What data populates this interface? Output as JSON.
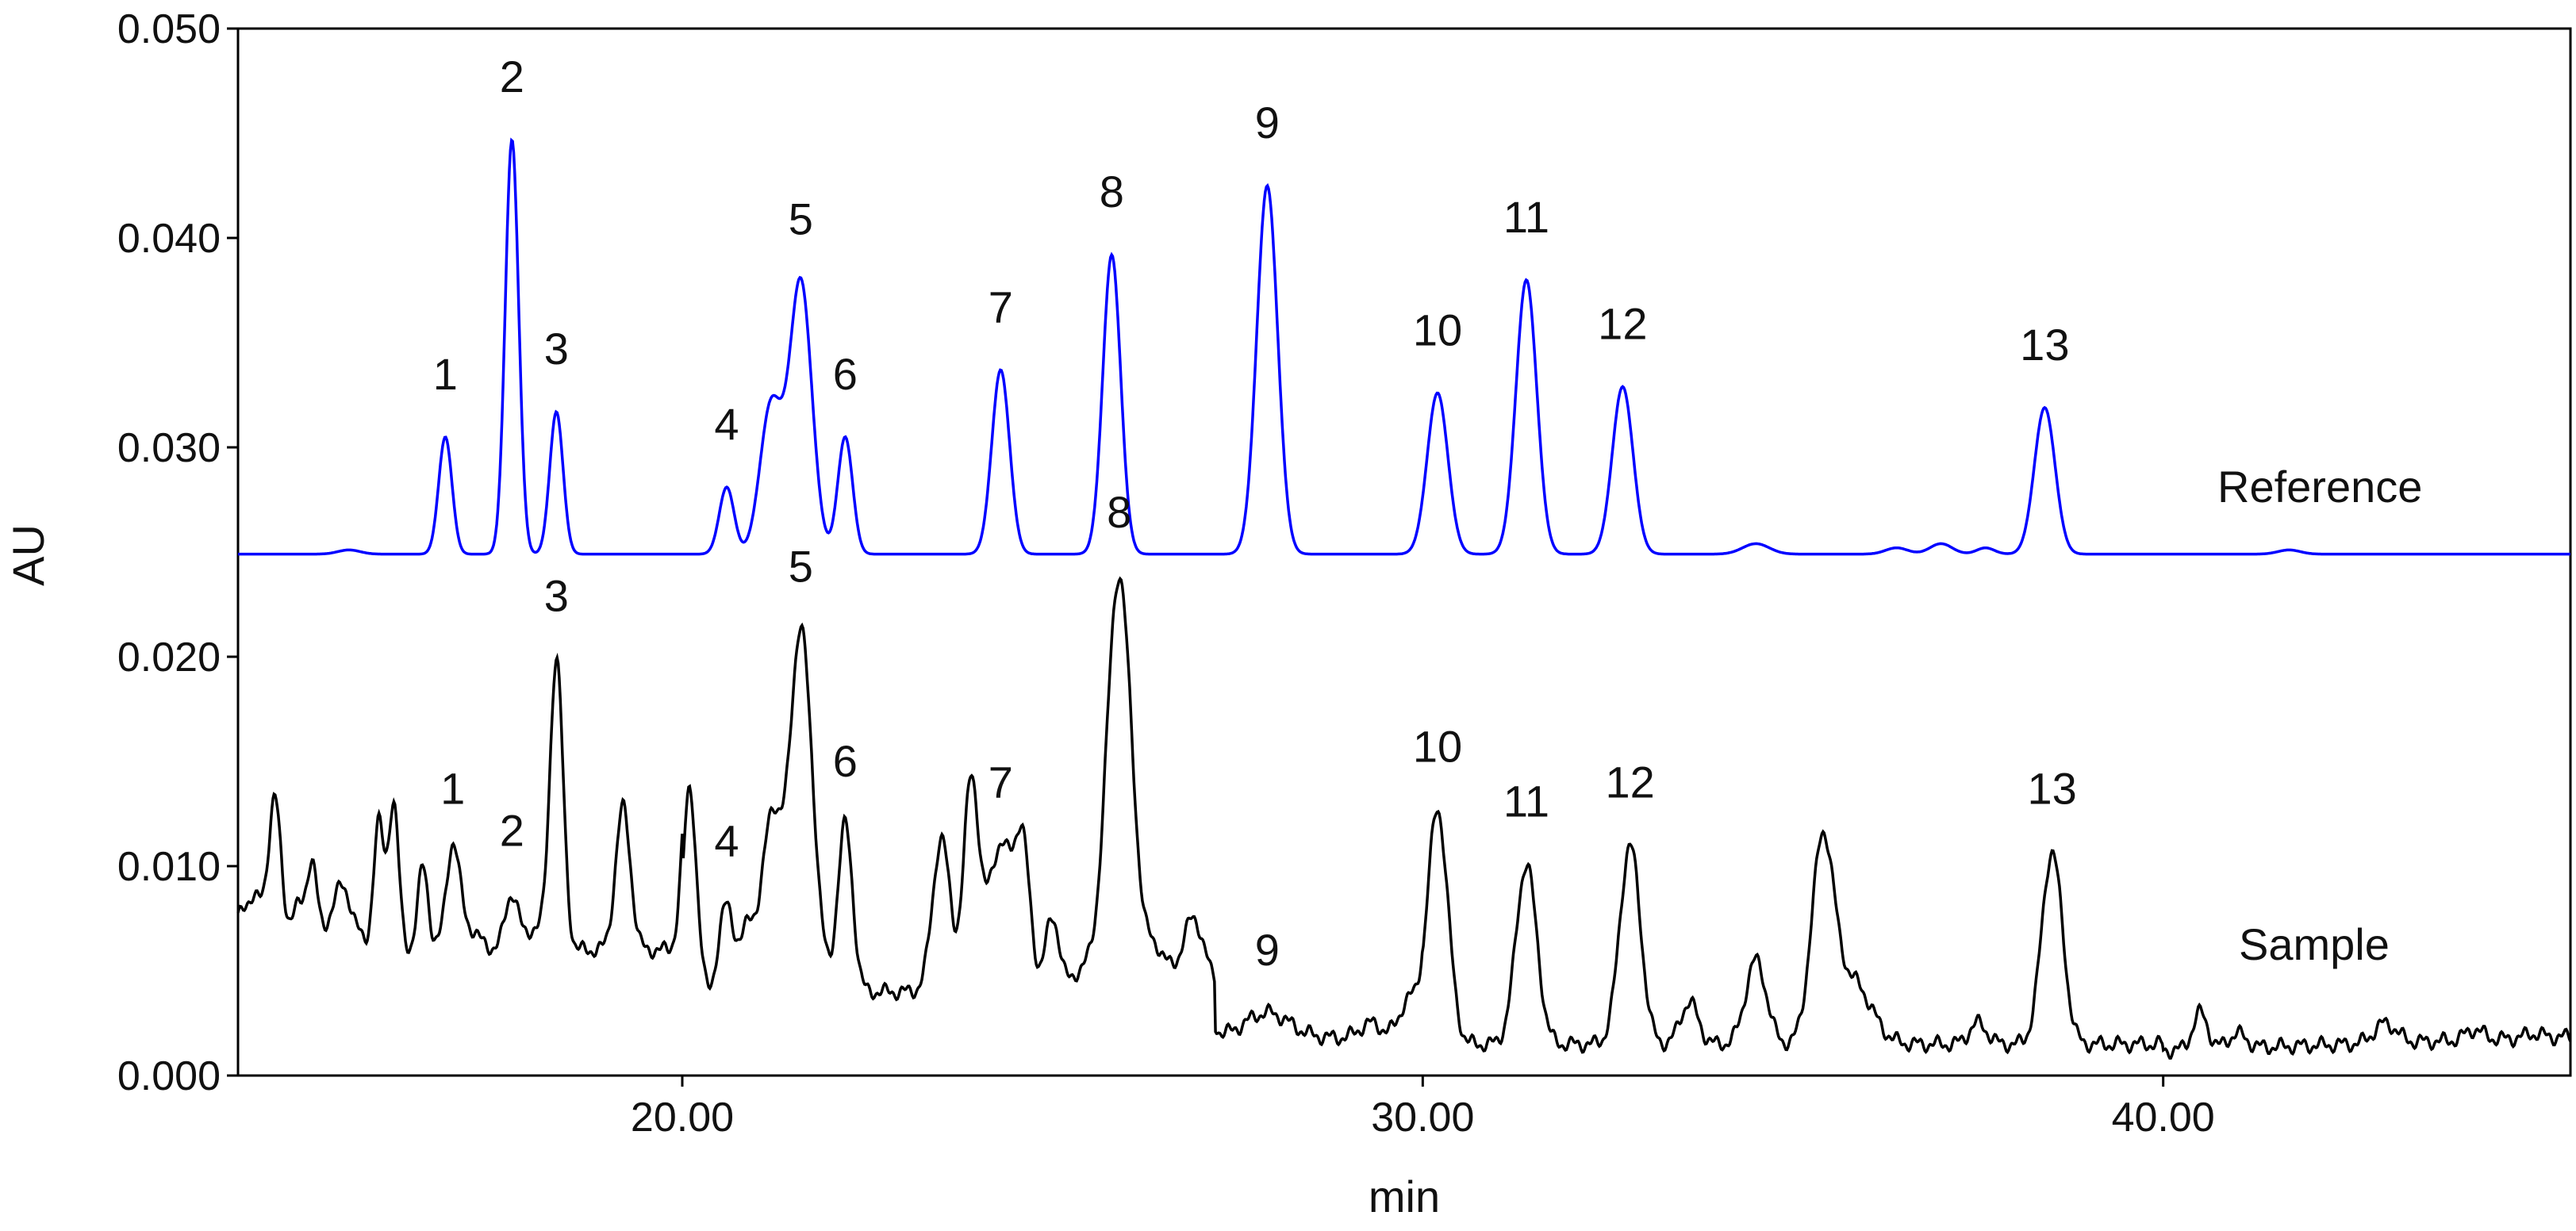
{
  "chart_data": {
    "type": "line",
    "xlabel": "min",
    "ylabel": "AU",
    "xlim": [
      14.0,
      45.5
    ],
    "ylim": [
      0.0,
      0.05
    ],
    "x_ticks": [
      20,
      30,
      40
    ],
    "x_tick_labels": [
      "20.00",
      "30.00",
      "40.00"
    ],
    "y_ticks": [
      0.0,
      0.01,
      0.02,
      0.03,
      0.04,
      0.05
    ],
    "y_tick_labels": [
      "0.000",
      "0.010",
      "0.020",
      "0.030",
      "0.040",
      "0.050"
    ],
    "grid": false,
    "series": [
      {
        "name": "Reference",
        "color": "#0000ff",
        "baseline": 0.0249,
        "peaks": [
          {
            "label": "1",
            "x": 16.8,
            "y": 0.0305,
            "w": 0.09
          },
          {
            "label": "2",
            "x": 17.7,
            "y": 0.0447,
            "w": 0.09
          },
          {
            "label": "3",
            "x": 18.3,
            "y": 0.0317,
            "w": 0.09
          },
          {
            "label": "4",
            "x": 20.6,
            "y": 0.0281,
            "w": 0.1
          },
          {
            "label": "5",
            "x": 21.6,
            "y": 0.0379,
            "w": 0.15
          },
          {
            "label": "6",
            "x": 22.2,
            "y": 0.0305,
            "w": 0.1
          },
          {
            "label": "7",
            "x": 24.3,
            "y": 0.0337,
            "w": 0.12
          },
          {
            "label": "8",
            "x": 25.8,
            "y": 0.0392,
            "w": 0.12
          },
          {
            "label": "9",
            "x": 27.9,
            "y": 0.0425,
            "w": 0.14
          },
          {
            "label": "10",
            "x": 30.2,
            "y": 0.0326,
            "w": 0.14
          },
          {
            "label": "11",
            "x": 31.4,
            "y": 0.038,
            "w": 0.14
          },
          {
            "label": "12",
            "x": 32.7,
            "y": 0.0329,
            "w": 0.14
          },
          {
            "label": "13",
            "x": 38.4,
            "y": 0.0319,
            "w": 0.14
          }
        ],
        "minor_peaks": [
          {
            "x": 15.5,
            "y": 0.0251,
            "w": 0.15
          },
          {
            "x": 21.2,
            "y": 0.032,
            "w": 0.15
          },
          {
            "x": 34.5,
            "y": 0.0254,
            "w": 0.18
          },
          {
            "x": 36.4,
            "y": 0.0252,
            "w": 0.15
          },
          {
            "x": 37.0,
            "y": 0.0254,
            "w": 0.15
          },
          {
            "x": 37.6,
            "y": 0.0252,
            "w": 0.12
          },
          {
            "x": 41.7,
            "y": 0.0251,
            "w": 0.15
          }
        ]
      },
      {
        "name": "Sample",
        "color": "#000000",
        "peaks": [
          {
            "label": "1",
            "x": 16.9,
            "y": 0.0107,
            "w": 0.09
          },
          {
            "label": "2",
            "x": 17.7,
            "y": 0.0087,
            "w": 0.09
          },
          {
            "label": "3",
            "x": 18.3,
            "y": 0.0199,
            "w": 0.09
          },
          {
            "label": "4",
            "x": 20.6,
            "y": 0.0082,
            "w": 0.1
          },
          {
            "label": "5",
            "x": 21.6,
            "y": 0.0213,
            "w": 0.16
          },
          {
            "label": "6",
            "x": 22.2,
            "y": 0.012,
            "w": 0.1
          },
          {
            "label": "7",
            "x": 24.3,
            "y": 0.011,
            "w": 0.18
          },
          {
            "label": "8",
            "x": 25.9,
            "y": 0.0239,
            "w": 0.17
          },
          {
            "label": "9",
            "x": 27.9,
            "y": 0.003,
            "w": 0.3
          },
          {
            "label": "10",
            "x": 30.2,
            "y": 0.0127,
            "w": 0.14
          },
          {
            "label": "11",
            "x": 31.4,
            "y": 0.0101,
            "w": 0.14
          },
          {
            "label": "12",
            "x": 32.8,
            "y": 0.011,
            "w": 0.14
          },
          {
            "label": "13",
            "x": 38.5,
            "y": 0.0107,
            "w": 0.14
          }
        ],
        "minor_peaks": [
          {
            "x": 14.2,
            "y": 0.0085,
            "w": 0.2
          },
          {
            "x": 14.5,
            "y": 0.0125,
            "w": 0.08
          },
          {
            "x": 14.8,
            "y": 0.008,
            "w": 0.1
          },
          {
            "x": 15.0,
            "y": 0.01,
            "w": 0.07
          },
          {
            "x": 15.4,
            "y": 0.009,
            "w": 0.15
          },
          {
            "x": 15.9,
            "y": 0.012,
            "w": 0.07
          },
          {
            "x": 16.1,
            "y": 0.013,
            "w": 0.07
          },
          {
            "x": 16.5,
            "y": 0.01,
            "w": 0.07
          },
          {
            "x": 17.1,
            "y": 0.007,
            "w": 0.15
          },
          {
            "x": 18.0,
            "y": 0.007,
            "w": 0.1
          },
          {
            "x": 18.7,
            "y": 0.006,
            "w": 0.1
          },
          {
            "x": 19.2,
            "y": 0.0128,
            "w": 0.1
          },
          {
            "x": 19.7,
            "y": 0.006,
            "w": 0.1
          },
          {
            "x": 20.1,
            "y": 0.0138,
            "w": 0.09
          },
          {
            "x": 20.9,
            "y": 0.0072,
            "w": 0.1
          },
          {
            "x": 21.2,
            "y": 0.012,
            "w": 0.12
          },
          {
            "x": 22.8,
            "y": 0.0035,
            "w": 0.12
          },
          {
            "x": 23.5,
            "y": 0.0113,
            "w": 0.12
          },
          {
            "x": 23.9,
            "y": 0.0138,
            "w": 0.1
          },
          {
            "x": 24.6,
            "y": 0.01,
            "w": 0.1
          },
          {
            "x": 25.0,
            "y": 0.0075,
            "w": 0.1
          },
          {
            "x": 25.4,
            "y": 0.005,
            "w": 0.12
          },
          {
            "x": 26.4,
            "y": 0.006,
            "w": 0.15
          },
          {
            "x": 26.9,
            "y": 0.0075,
            "w": 0.15
          },
          {
            "x": 29.3,
            "y": 0.0025,
            "w": 0.15
          },
          {
            "x": 29.8,
            "y": 0.0035,
            "w": 0.12
          },
          {
            "x": 33.6,
            "y": 0.0035,
            "w": 0.12
          },
          {
            "x": 34.5,
            "y": 0.0055,
            "w": 0.14
          },
          {
            "x": 35.4,
            "y": 0.0108,
            "w": 0.15
          },
          {
            "x": 35.8,
            "y": 0.0045,
            "w": 0.25
          },
          {
            "x": 37.5,
            "y": 0.0025,
            "w": 0.12
          },
          {
            "x": 40.5,
            "y": 0.003,
            "w": 0.1
          },
          {
            "x": 41.0,
            "y": 0.002,
            "w": 0.12
          },
          {
            "x": 43.0,
            "y": 0.0025,
            "w": 0.15
          },
          {
            "x": 44.2,
            "y": 0.0022,
            "w": 0.12
          },
          {
            "x": 45.0,
            "y": 0.002,
            "w": 0.12
          }
        ]
      }
    ],
    "annotations": {
      "reference_label": "Reference",
      "sample_label": "Sample"
    }
  }
}
